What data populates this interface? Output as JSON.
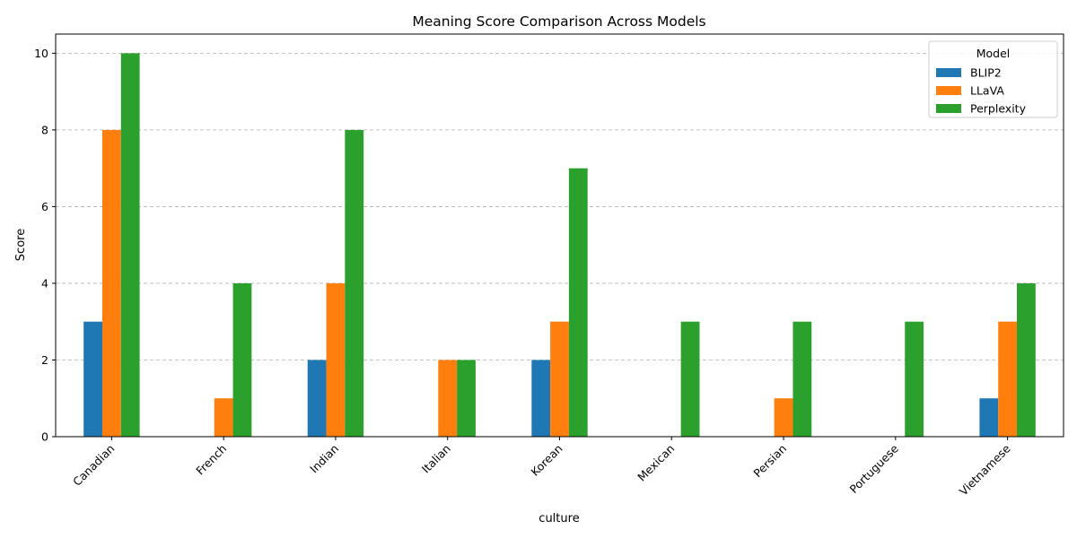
{
  "chart_data": {
    "type": "bar",
    "title": "Meaning Score Comparison Across Models",
    "xlabel": "culture",
    "ylabel": "Score",
    "categories": [
      "Canadian",
      "French",
      "Indian",
      "Italian",
      "Korean",
      "Mexican",
      "Persian",
      "Portuguese",
      "Vietnamese"
    ],
    "series": [
      {
        "name": "BLIP2",
        "color": "#1f77b4",
        "values": [
          3,
          0,
          2,
          0,
          2,
          0,
          0,
          0,
          1
        ]
      },
      {
        "name": "LLaVA",
        "color": "#ff7f0e",
        "values": [
          8,
          1,
          4,
          2,
          3,
          0,
          1,
          0,
          3
        ]
      },
      {
        "name": "Perplexity",
        "color": "#2ca02c",
        "values": [
          10,
          4,
          8,
          2,
          7,
          3,
          3,
          3,
          4
        ]
      }
    ],
    "ylim": [
      0,
      10.5
    ],
    "yticks": [
      0,
      2,
      4,
      6,
      8,
      10
    ],
    "grid": "y-dashed",
    "legend": {
      "title": "Model",
      "placement": "top-right"
    }
  }
}
